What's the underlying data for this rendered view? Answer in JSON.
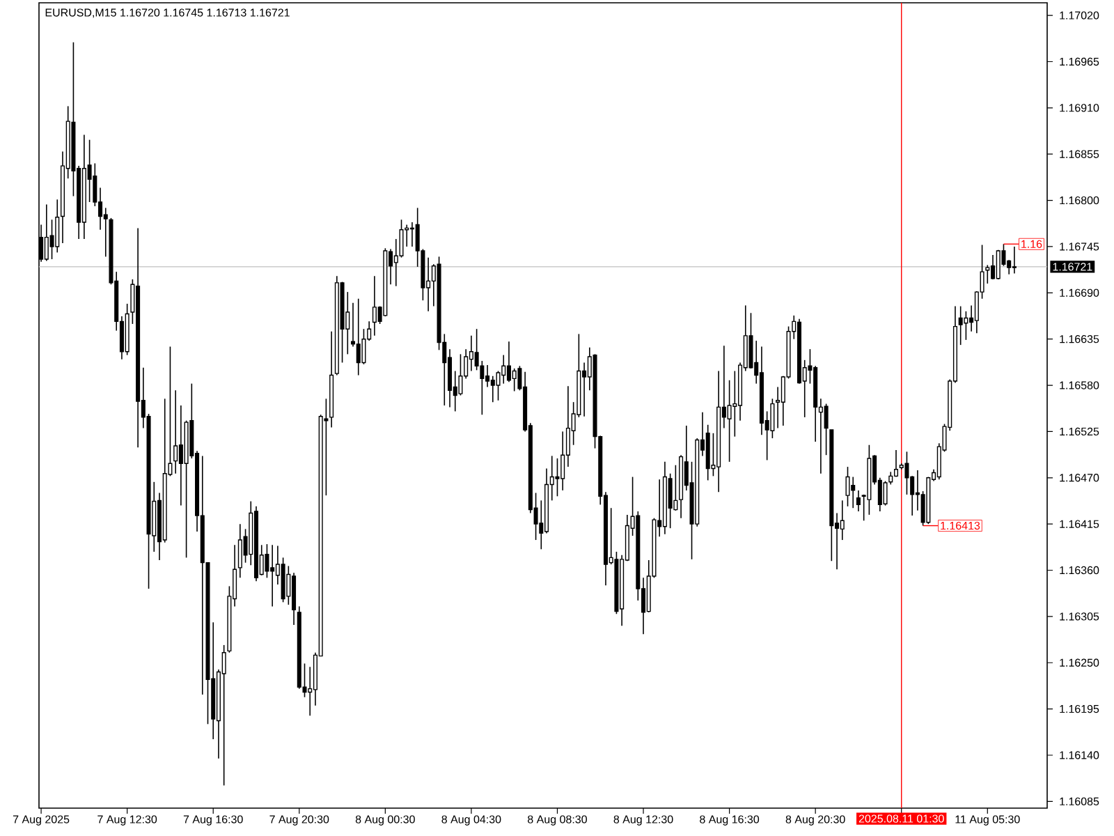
{
  "chart_data": {
    "type": "candlestick",
    "title": "EURUSD,M15 1.16720 1.16745 1.16713 1.16721",
    "categories": [
      "7 Aug 2025",
      null,
      null,
      null,
      null,
      null,
      null,
      null,
      null,
      null,
      null,
      null,
      null,
      null,
      null,
      null,
      "7 Aug 12:30",
      null,
      null,
      null,
      null,
      null,
      null,
      null,
      null,
      null,
      null,
      null,
      null,
      null,
      null,
      null,
      "7 Aug 16:30",
      null,
      null,
      null,
      null,
      null,
      null,
      null,
      null,
      null,
      null,
      null,
      null,
      null,
      null,
      null,
      "7 Aug 20:30",
      null,
      null,
      null,
      null,
      null,
      null,
      null,
      null,
      null,
      null,
      null,
      null,
      null,
      null,
      null,
      "8 Aug 00:30",
      null,
      null,
      null,
      null,
      null,
      null,
      null,
      null,
      null,
      null,
      null,
      null,
      null,
      null,
      null,
      "8 Aug 04:30",
      null,
      null,
      null,
      null,
      null,
      null,
      null,
      null,
      null,
      null,
      null,
      null,
      null,
      null,
      null,
      "8 Aug 08:30",
      null,
      null,
      null,
      null,
      null,
      null,
      null,
      null,
      null,
      null,
      null,
      null,
      null,
      null,
      null,
      "8 Aug 12:30",
      null,
      null,
      null,
      null,
      null,
      null,
      null,
      null,
      null,
      null,
      null,
      null,
      null,
      null,
      null,
      "8 Aug 16:30",
      null,
      null,
      null,
      null,
      null,
      null,
      null,
      null,
      null,
      null,
      null,
      null,
      null,
      null,
      null,
      "8 Aug 20:30",
      null,
      null,
      null,
      null,
      null,
      null,
      null,
      null,
      null,
      null,
      null,
      null,
      null,
      null,
      null,
      "2025.08.11 01:30",
      null,
      null,
      null,
      null,
      null,
      null,
      null,
      null,
      null,
      null,
      null,
      null,
      null,
      null,
      null,
      "11 Aug 05:30",
      null,
      null,
      null,
      null,
      null
    ],
    "ohlc": [
      [
        1.16756,
        1.16771,
        1.16727,
        1.1673
      ],
      [
        1.1673,
        1.16795,
        1.16728,
        1.16756
      ],
      [
        1.16758,
        1.16777,
        1.1673,
        1.16745
      ],
      [
        1.16745,
        1.16801,
        1.16738,
        1.1678
      ],
      [
        1.16781,
        1.16858,
        1.16749,
        1.16841
      ],
      [
        1.16838,
        1.16912,
        1.16826,
        1.16894
      ],
      [
        1.16893,
        1.16988,
        1.16805,
        1.16835
      ],
      [
        1.16838,
        1.16841,
        1.16754,
        1.16774
      ],
      [
        1.16774,
        1.16878,
        1.16754,
        1.16838
      ],
      [
        1.16842,
        1.16872,
        1.16798,
        1.16825
      ],
      [
        1.16829,
        1.16844,
        1.16793,
        1.16798
      ],
      [
        1.16798,
        1.16815,
        1.16765,
        1.16781
      ],
      [
        1.16783,
        1.16791,
        1.16733,
        1.16778
      ],
      [
        1.16777,
        1.16779,
        1.167,
        1.16702
      ],
      [
        1.16704,
        1.16715,
        1.16645,
        1.16656
      ],
      [
        1.16656,
        1.16662,
        1.16611,
        1.1662
      ],
      [
        1.1662,
        1.16677,
        1.16616,
        1.16665
      ],
      [
        1.16667,
        1.16706,
        1.16653,
        1.167
      ],
      [
        1.16698,
        1.16767,
        1.16506,
        1.16561
      ],
      [
        1.16562,
        1.16601,
        1.16529,
        1.16542
      ],
      [
        1.16543,
        1.16546,
        1.16338,
        1.16403
      ],
      [
        1.16401,
        1.16465,
        1.16382,
        1.16442
      ],
      [
        1.16443,
        1.16452,
        1.16372,
        1.16394
      ],
      [
        1.16396,
        1.16564,
        1.16393,
        1.16475
      ],
      [
        1.16474,
        1.16626,
        1.16472,
        1.16487
      ],
      [
        1.1649,
        1.16574,
        1.16475,
        1.16508
      ],
      [
        1.16509,
        1.16556,
        1.16437,
        1.16487
      ],
      [
        1.16487,
        1.16538,
        1.16375,
        1.16536
      ],
      [
        1.16538,
        1.16582,
        1.16493,
        1.16496
      ],
      [
        1.16499,
        1.16502,
        1.16406,
        1.16425
      ],
      [
        1.16425,
        1.16496,
        1.16212,
        1.16369
      ],
      [
        1.16369,
        1.16369,
        1.16177,
        1.1623
      ],
      [
        1.16231,
        1.16298,
        1.16159,
        1.16183
      ],
      [
        1.16181,
        1.16242,
        1.16136,
        1.16239
      ],
      [
        1.16237,
        1.16271,
        1.16104,
        1.16262
      ],
      [
        1.16264,
        1.16341,
        1.16262,
        1.16329
      ],
      [
        1.16326,
        1.1639,
        1.16317,
        1.16361
      ],
      [
        1.16363,
        1.16415,
        1.16351,
        1.16396
      ],
      [
        1.164,
        1.16409,
        1.16369,
        1.16378
      ],
      [
        1.16379,
        1.16442,
        1.16366,
        1.16428
      ],
      [
        1.1643,
        1.16436,
        1.16347,
        1.16351
      ],
      [
        1.16355,
        1.1639,
        1.16354,
        1.16378
      ],
      [
        1.16379,
        1.16391,
        1.16351,
        1.16359
      ],
      [
        1.16363,
        1.1639,
        1.16317,
        1.16359
      ],
      [
        1.16354,
        1.16389,
        1.16343,
        1.16367
      ],
      [
        1.16367,
        1.16375,
        1.16322,
        1.16326
      ],
      [
        1.16329,
        1.16365,
        1.16319,
        1.16355
      ],
      [
        1.16353,
        1.16357,
        1.16295,
        1.16313
      ],
      [
        1.1631,
        1.16317,
        1.16219,
        1.16221
      ],
      [
        1.16221,
        1.16249,
        1.16209,
        1.16215
      ],
      [
        1.16215,
        1.16245,
        1.16187,
        1.16219
      ],
      [
        1.16218,
        1.16262,
        1.16199,
        1.16259
      ],
      [
        1.16258,
        1.16545,
        1.16258,
        1.16543
      ],
      [
        1.1654,
        1.16564,
        1.16449,
        1.16538
      ],
      [
        1.16542,
        1.16644,
        1.1653,
        1.16592
      ],
      [
        1.16594,
        1.1671,
        1.16592,
        1.16702
      ],
      [
        1.16702,
        1.16703,
        1.16607,
        1.16647
      ],
      [
        1.16647,
        1.16691,
        1.16617,
        1.16667
      ],
      [
        1.16632,
        1.16678,
        1.16626,
        1.16629
      ],
      [
        1.16629,
        1.16683,
        1.16592,
        1.16607
      ],
      [
        1.16607,
        1.16647,
        1.16605,
        1.16635
      ],
      [
        1.16635,
        1.16656,
        1.16633,
        1.16647
      ],
      [
        1.16655,
        1.1671,
        1.16639,
        1.16673
      ],
      [
        1.16673,
        1.16674,
        1.16653,
        1.16656
      ],
      [
        1.16663,
        1.16743,
        1.16662,
        1.1674
      ],
      [
        1.16739,
        1.16742,
        1.167,
        1.16722
      ],
      [
        1.16726,
        1.16754,
        1.16698,
        1.16734
      ],
      [
        1.16734,
        1.16777,
        1.16732,
        1.16765
      ],
      [
        1.16765,
        1.16771,
        1.16745,
        1.16767
      ],
      [
        1.16766,
        1.16774,
        1.16745,
        1.16767
      ],
      [
        1.16771,
        1.16791,
        1.16721,
        1.1674
      ],
      [
        1.1674,
        1.16742,
        1.16681,
        1.16696
      ],
      [
        1.16696,
        1.16732,
        1.16668,
        1.16704
      ],
      [
        1.16704,
        1.16724,
        1.16674,
        1.16722
      ],
      [
        1.16724,
        1.16733,
        1.16622,
        1.16631
      ],
      [
        1.16631,
        1.16641,
        1.16556,
        1.16607
      ],
      [
        1.16613,
        1.16623,
        1.16554,
        1.16574
      ],
      [
        1.16578,
        1.16597,
        1.16549,
        1.16568
      ],
      [
        1.1657,
        1.16617,
        1.16568,
        1.16591
      ],
      [
        1.16591,
        1.16623,
        1.16588,
        1.16614
      ],
      [
        1.16611,
        1.16639,
        1.16597,
        1.1662
      ],
      [
        1.16619,
        1.16647,
        1.16598,
        1.16603
      ],
      [
        1.16603,
        1.16609,
        1.16545,
        1.16588
      ],
      [
        1.16591,
        1.16604,
        1.16578,
        1.16585
      ],
      [
        1.16586,
        1.16591,
        1.1656,
        1.1658
      ],
      [
        1.1658,
        1.16597,
        1.16562,
        1.16595
      ],
      [
        1.16592,
        1.16616,
        1.16582,
        1.16603
      ],
      [
        1.16603,
        1.16632,
        1.16584,
        1.16586
      ],
      [
        1.16588,
        1.166,
        1.16573,
        1.16597
      ],
      [
        1.166,
        1.16603,
        1.16574,
        1.16576
      ],
      [
        1.16578,
        1.16596,
        1.16525,
        1.16527
      ],
      [
        1.16532,
        1.16535,
        1.16428,
        1.16432
      ],
      [
        1.16434,
        1.16452,
        1.16396,
        1.16415
      ],
      [
        1.16416,
        1.16443,
        1.16385,
        1.16404
      ],
      [
        1.16406,
        1.16481,
        1.16404,
        1.16462
      ],
      [
        1.16462,
        1.16496,
        1.16443,
        1.16471
      ],
      [
        1.16471,
        1.16493,
        1.16448,
        1.16469
      ],
      [
        1.16469,
        1.16525,
        1.16455,
        1.16497
      ],
      [
        1.16497,
        1.16579,
        1.16483,
        1.16529
      ],
      [
        1.16526,
        1.1656,
        1.16509,
        1.16546
      ],
      [
        1.16545,
        1.16641,
        1.16542,
        1.16597
      ],
      [
        1.16597,
        1.16607,
        1.16543,
        1.1659
      ],
      [
        1.1659,
        1.16625,
        1.16574,
        1.16614
      ],
      [
        1.16616,
        1.16617,
        1.16505,
        1.16519
      ],
      [
        1.16519,
        1.1652,
        1.16438,
        1.16448
      ],
      [
        1.16449,
        1.16453,
        1.16342,
        1.16367
      ],
      [
        1.16369,
        1.16434,
        1.16367,
        1.16375
      ],
      [
        1.16373,
        1.16382,
        1.16308,
        1.16311
      ],
      [
        1.16314,
        1.16378,
        1.16294,
        1.16373
      ],
      [
        1.16372,
        1.16426,
        1.16371,
        1.16413
      ],
      [
        1.1641,
        1.16471,
        1.16401,
        1.16424
      ],
      [
        1.16425,
        1.1643,
        1.16324,
        1.16338
      ],
      [
        1.16338,
        1.16351,
        1.16284,
        1.1631
      ],
      [
        1.16311,
        1.16372,
        1.1631,
        1.16353
      ],
      [
        1.16353,
        1.16422,
        1.16351,
        1.1642
      ],
      [
        1.16419,
        1.16468,
        1.164,
        1.16412
      ],
      [
        1.16412,
        1.16489,
        1.16403,
        1.16471
      ],
      [
        1.16469,
        1.16475,
        1.1641,
        1.16434
      ],
      [
        1.16432,
        1.16485,
        1.16431,
        1.16443
      ],
      [
        1.16444,
        1.16497,
        1.16422,
        1.16495
      ],
      [
        1.16489,
        1.16532,
        1.16455,
        1.16461
      ],
      [
        1.16464,
        1.16489,
        1.16373,
        1.16415
      ],
      [
        1.16415,
        1.16517,
        1.16412,
        1.16515
      ],
      [
        1.16515,
        1.16548,
        1.16496,
        1.16503
      ],
      [
        1.16523,
        1.16533,
        1.16467,
        1.16481
      ],
      [
        1.16481,
        1.16523,
        1.16472,
        1.16485
      ],
      [
        1.16483,
        1.16597,
        1.16453,
        1.16554
      ],
      [
        1.16554,
        1.16627,
        1.16529,
        1.16542
      ],
      [
        1.1654,
        1.16586,
        1.16489,
        1.16556
      ],
      [
        1.16555,
        1.16597,
        1.16519,
        1.16558
      ],
      [
        1.16556,
        1.16607,
        1.16538,
        1.16604
      ],
      [
        1.16601,
        1.16675,
        1.16597,
        1.16639
      ],
      [
        1.16639,
        1.16666,
        1.166,
        1.16601
      ],
      [
        1.16607,
        1.16633,
        1.16582,
        1.16592
      ],
      [
        1.16595,
        1.16626,
        1.16521,
        1.16535
      ],
      [
        1.16538,
        1.16549,
        1.16491,
        1.16527
      ],
      [
        1.16526,
        1.16564,
        1.16517,
        1.16558
      ],
      [
        1.1656,
        1.16578,
        1.16529,
        1.16562
      ],
      [
        1.1656,
        1.16591,
        1.16532,
        1.1659
      ],
      [
        1.1659,
        1.1665,
        1.16588,
        1.16644
      ],
      [
        1.16644,
        1.16663,
        1.16635,
        1.16656
      ],
      [
        1.16655,
        1.16659,
        1.16582,
        1.16583
      ],
      [
        1.16585,
        1.1661,
        1.16542,
        1.16601
      ],
      [
        1.16603,
        1.16623,
        1.16582,
        1.16598
      ],
      [
        1.16601,
        1.16603,
        1.16513,
        1.16554
      ],
      [
        1.16548,
        1.16564,
        1.16475,
        1.16554
      ],
      [
        1.16555,
        1.16558,
        1.16497,
        1.16529
      ],
      [
        1.16527,
        1.16527,
        1.16371,
        1.16413
      ],
      [
        1.16416,
        1.16428,
        1.16361,
        1.1641
      ],
      [
        1.16409,
        1.16443,
        1.16396,
        1.16419
      ],
      [
        1.16449,
        1.16483,
        1.16436,
        1.16471
      ],
      [
        1.16461,
        1.16471,
        1.16434,
        1.16455
      ],
      [
        1.16446,
        1.16455,
        1.1643,
        1.16438
      ],
      [
        1.16448,
        1.1645,
        1.16419,
        1.16449
      ],
      [
        1.16444,
        1.16509,
        1.16426,
        1.16493
      ],
      [
        1.16496,
        1.16497,
        1.16462,
        1.16465
      ],
      [
        1.16467,
        1.1647,
        1.1643,
        1.16438
      ],
      [
        1.16439,
        1.16466,
        1.16437,
        1.16464
      ],
      [
        1.16465,
        1.16477,
        1.16462,
        1.16472
      ],
      [
        1.16472,
        1.16503,
        1.16471,
        1.1648
      ],
      [
        1.16482,
        1.16487,
        1.1648,
        1.16485
      ],
      [
        1.16487,
        1.16501,
        1.1645,
        1.1647
      ],
      [
        1.16471,
        1.16472,
        1.16425,
        1.1645
      ],
      [
        1.16452,
        1.16479,
        1.16431,
        1.1645
      ],
      [
        1.1645,
        1.16454,
        1.16413,
        1.16417
      ],
      [
        1.16417,
        1.16471,
        1.16415,
        1.1647
      ],
      [
        1.16468,
        1.1648,
        1.16466,
        1.16476
      ],
      [
        1.16471,
        1.16511,
        1.16468,
        1.16507
      ],
      [
        1.16503,
        1.16534,
        1.16501,
        1.16531
      ],
      [
        1.1653,
        1.16587,
        1.16526,
        1.16585
      ],
      [
        1.16585,
        1.16674,
        1.16583,
        1.1665
      ],
      [
        1.1666,
        1.16674,
        1.16628,
        1.16652
      ],
      [
        1.16654,
        1.16668,
        1.16634,
        1.1666
      ],
      [
        1.1666,
        1.16675,
        1.16644,
        1.16655
      ],
      [
        1.16657,
        1.16692,
        1.16642,
        1.16691
      ],
      [
        1.16691,
        1.16747,
        1.16683,
        1.16715
      ],
      [
        1.16717,
        1.16723,
        1.16701,
        1.1672
      ],
      [
        1.16722,
        1.16735,
        1.16706,
        1.16707
      ],
      [
        1.16707,
        1.16741,
        1.16706,
        1.1674
      ],
      [
        1.1674,
        1.16748,
        1.16722,
        1.16724
      ],
      [
        1.16728,
        1.16729,
        1.16712,
        1.1672
      ],
      [
        1.1672,
        1.16745,
        1.16713,
        1.16721
      ]
    ],
    "ylim": [
      1.16077,
      1.17035
    ],
    "yticks": [
      {
        "value": 1.1702,
        "label": "1.17020"
      },
      1.16965,
      {
        "value": 1.1691,
        "label": "1.16910"
      },
      1.16855,
      {
        "value": 1.168,
        "label": "1.16800"
      },
      1.16745,
      {
        "value": 1.1669,
        "label": "1.16690"
      },
      1.16635,
      {
        "value": 1.1658,
        "label": "1.16580"
      },
      1.16525,
      {
        "value": 1.1647,
        "label": "1.16470"
      },
      1.16415,
      {
        "value": 1.1636,
        "label": "1.16360"
      },
      1.16305,
      {
        "value": 1.1625,
        "label": "1.16250"
      },
      1.16195,
      {
        "value": 1.1614,
        "label": "1.16140"
      },
      1.16085
    ],
    "ref_lines": [
      {
        "axis": "y",
        "value": 1.16721,
        "label": "1.16721",
        "color": "#c0c0c0"
      },
      {
        "axis": "x",
        "value": "2025.08.11 01:30",
        "color": "#ff0000"
      }
    ],
    "annotations": [
      "1.16413",
      "1.16"
    ]
  }
}
